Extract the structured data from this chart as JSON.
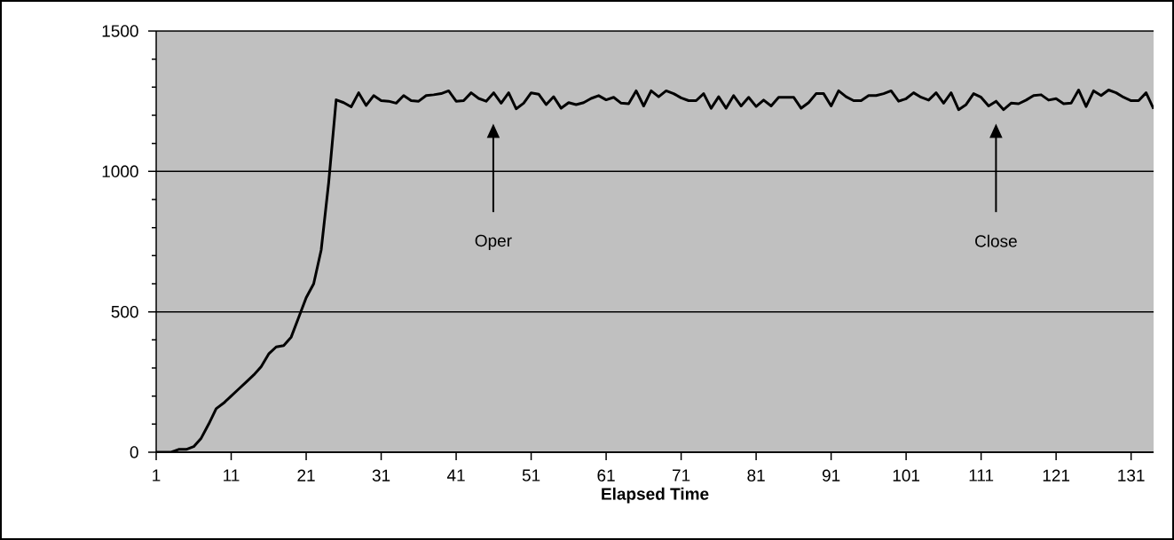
{
  "chart_data": {
    "type": "line",
    "xlabel": "Elapsed Time",
    "x": [
      1,
      2,
      3,
      4,
      5,
      6,
      7,
      8,
      9,
      10,
      11,
      12,
      13,
      14,
      15,
      16,
      17,
      18,
      19,
      20,
      21,
      22,
      23,
      24,
      25,
      26,
      27,
      28,
      29,
      30,
      31,
      32,
      33,
      34,
      35,
      36,
      37,
      38,
      39,
      40,
      41,
      42,
      43,
      44,
      45,
      46,
      47,
      48,
      49,
      50,
      51,
      52,
      53,
      54,
      55,
      56,
      57,
      58,
      59,
      60,
      61,
      62,
      63,
      64,
      65,
      66,
      67,
      68,
      69,
      70,
      71,
      72,
      73,
      74,
      75,
      76,
      77,
      78,
      79,
      80,
      81,
      82,
      83,
      84,
      85,
      86,
      87,
      88,
      89,
      90,
      91,
      92,
      93,
      94,
      95,
      96,
      97,
      98,
      99,
      100,
      101,
      102,
      103,
      104,
      105,
      106,
      107,
      108,
      109,
      110,
      111,
      112,
      113,
      114,
      115,
      116,
      117,
      118,
      119,
      120,
      121,
      122,
      123,
      124,
      125,
      126,
      127,
      128,
      129,
      130,
      131,
      132,
      133,
      134
    ],
    "series": [
      {
        "color": "#000000",
        "values": [
          0,
          0,
          0,
          10,
          10,
          20,
          50,
          100,
          155,
          175,
          200,
          225,
          250,
          275,
          305,
          350,
          375,
          380,
          410,
          480,
          550,
          600,
          720,
          960,
          1255,
          1245,
          1230,
          1280,
          1235,
          1270,
          1252,
          1250,
          1243,
          1270,
          1252,
          1250,
          1270,
          1273,
          1277,
          1287,
          1250,
          1252,
          1280,
          1260,
          1250,
          1280,
          1243,
          1280,
          1223,
          1243,
          1280,
          1275,
          1238,
          1266,
          1225,
          1245,
          1238,
          1245,
          1260,
          1270,
          1255,
          1264,
          1243,
          1241,
          1287,
          1233,
          1287,
          1266,
          1287,
          1277,
          1262,
          1252,
          1252,
          1277,
          1225,
          1266,
          1225,
          1270,
          1233,
          1264,
          1231,
          1254,
          1233,
          1264,
          1264,
          1264,
          1225,
          1245,
          1277,
          1277,
          1233,
          1287,
          1266,
          1252,
          1252,
          1270,
          1270,
          1277,
          1287,
          1250,
          1259,
          1280,
          1264,
          1254,
          1280,
          1243,
          1280,
          1220,
          1238,
          1277,
          1264,
          1233,
          1250,
          1220,
          1243,
          1241,
          1254,
          1270,
          1273,
          1254,
          1259,
          1241,
          1243,
          1290,
          1231,
          1287,
          1270,
          1290,
          1280,
          1264,
          1252,
          1252,
          1280,
          1223
        ]
      }
    ],
    "xlim": [
      1,
      134
    ],
    "xticks": [
      1,
      11,
      21,
      31,
      41,
      51,
      61,
      71,
      81,
      91,
      101,
      111,
      121,
      131
    ],
    "ylim": [
      0,
      1500
    ],
    "yticks": [
      0,
      {
        "value": 100,
        "label": null
      },
      {
        "value": 200,
        "label": null
      },
      {
        "value": 300,
        "label": null
      },
      {
        "value": 400,
        "label": null
      },
      500,
      {
        "value": 600,
        "label": null
      },
      {
        "value": 700,
        "label": null
      },
      {
        "value": 800,
        "label": null
      },
      {
        "value": 900,
        "label": null
      },
      1000,
      {
        "value": 1100,
        "label": null
      },
      {
        "value": 1200,
        "label": null
      },
      {
        "value": 1300,
        "label": null
      },
      {
        "value": 1400,
        "label": null
      },
      1500
    ],
    "grid": "y",
    "marker": "none",
    "line_style": "solid",
    "annotations": [
      "Oper",
      "Close"
    ]
  }
}
